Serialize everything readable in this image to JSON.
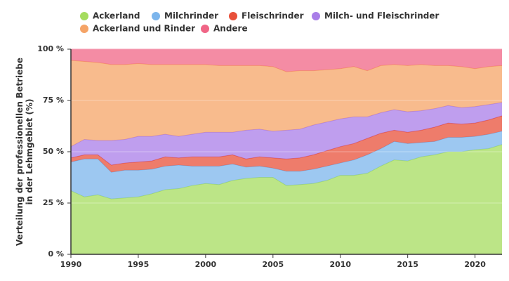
{
  "chart_data": {
    "type": "stacked_area",
    "ylabel": [
      "Verteilung der professionellen Betriebe",
      "in der Lehmgebiet (%)"
    ],
    "x": [
      1990,
      1991,
      1992,
      1993,
      1994,
      1995,
      1996,
      1997,
      1998,
      1999,
      2000,
      2001,
      2002,
      2003,
      2004,
      2005,
      2006,
      2007,
      2008,
      2009,
      2010,
      2011,
      2012,
      2013,
      2014,
      2015,
      2016,
      2017,
      2018,
      2019,
      2020,
      2021,
      2022
    ],
    "xlim": [
      1990,
      2022
    ],
    "xticks": [
      1990,
      1995,
      2000,
      2005,
      2010,
      2015,
      2020
    ],
    "ylim": [
      0,
      100
    ],
    "yticks": [
      {
        "value": 0,
        "label": "0 %"
      },
      {
        "value": 25,
        "label": "25 %"
      },
      {
        "value": 50,
        "label": "50 %"
      },
      {
        "value": 75,
        "label": "75 %"
      },
      {
        "value": 100,
        "label": "100 %"
      }
    ],
    "grid": true,
    "series": [
      {
        "name": "Ackerland",
        "color": "#a5dc5f",
        "values": [
          31,
          28,
          29,
          27,
          27.5,
          28,
          29.5,
          31.5,
          32,
          33.5,
          34.5,
          34,
          36,
          37,
          37.5,
          37.5,
          33.5,
          34,
          34.5,
          36,
          38.5,
          38.5,
          39.5,
          43,
          46,
          45.5,
          47.5,
          48.5,
          50,
          50,
          51,
          51.5,
          53.5
        ]
      },
      {
        "name": "Milchrinder",
        "color": "#7cb5ec",
        "values": [
          14,
          18.5,
          17.5,
          13,
          13.5,
          13,
          12,
          11.5,
          11.5,
          9.5,
          8.5,
          9,
          8,
          5.5,
          5.5,
          4.5,
          7,
          6.5,
          7,
          7,
          6,
          7.5,
          9,
          8.5,
          9,
          8.5,
          7,
          6.5,
          7,
          7,
          6.5,
          7,
          6.5
        ]
      },
      {
        "name": "Fleischrinder",
        "color": "#e8503a",
        "values": [
          2,
          2,
          2,
          3.5,
          3.5,
          4,
          4,
          4.5,
          3.5,
          4.5,
          4.5,
          4.5,
          4.5,
          4,
          4.5,
          5,
          6,
          6.5,
          7,
          7.5,
          8,
          8,
          8,
          7.5,
          5.5,
          5.5,
          6,
          7,
          7,
          6.5,
          6.5,
          7,
          7.5
        ]
      },
      {
        "name": "Milch- und Fleischrinder",
        "color": "#a97ee8",
        "values": [
          5.5,
          7.5,
          7,
          12,
          11.5,
          12.5,
          12,
          11,
          10.5,
          11,
          12,
          12,
          11,
          14,
          13.5,
          13,
          14,
          14,
          14.5,
          14,
          13.5,
          13,
          10.5,
          10,
          10,
          10,
          9.5,
          9,
          8.5,
          8,
          8,
          7.5,
          6.5
        ]
      },
      {
        "name": "Ackerland und Rinder",
        "color": "#f5a467",
        "values": [
          42,
          38,
          38,
          37,
          36.5,
          35.5,
          35,
          34,
          35,
          34,
          33,
          32.5,
          32.5,
          31.5,
          31,
          31.5,
          28.5,
          28.5,
          26.5,
          25.5,
          24.5,
          24.5,
          22.5,
          23,
          22,
          22.5,
          22.5,
          21,
          19.5,
          20,
          18.5,
          18.5,
          18
        ]
      },
      {
        "name": "Andere",
        "color": "#f06586",
        "values": [
          5.5,
          6,
          6.5,
          7.5,
          7.5,
          7,
          7.5,
          7.5,
          7.5,
          7.5,
          7.5,
          8,
          8,
          8,
          8,
          8.5,
          11,
          10.5,
          10.5,
          10,
          9.5,
          8.5,
          10.5,
          8,
          7.5,
          8,
          7.5,
          8,
          8,
          8.5,
          9.5,
          8.5,
          8
        ]
      }
    ]
  }
}
